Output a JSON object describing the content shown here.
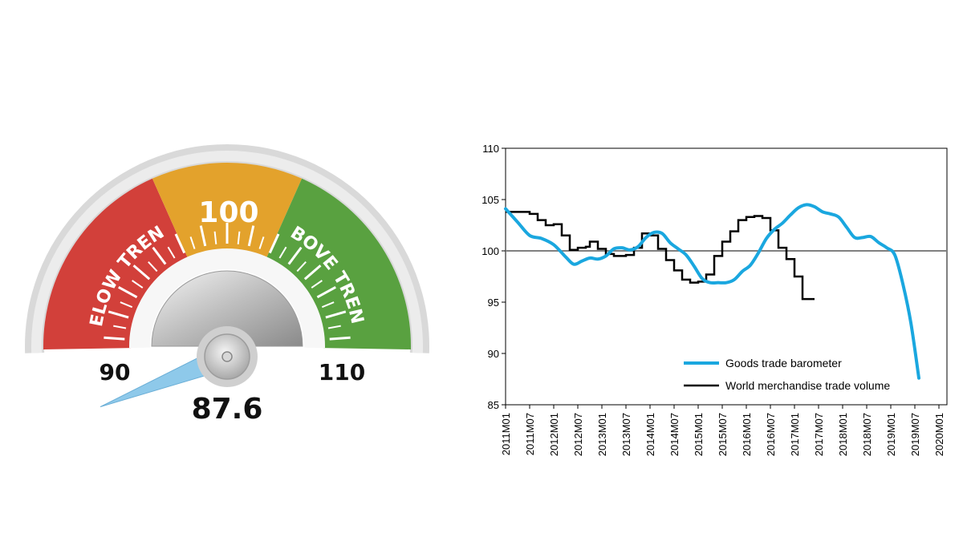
{
  "gauge": {
    "value": 87.6,
    "value_label": "87.6",
    "min": 90,
    "max": 110,
    "min_label": "90",
    "max_label": "110",
    "center_label": "100",
    "below_label": "BELOW TREND",
    "above_label": "ABOVE TREND",
    "colors": {
      "below": "#d2403a",
      "center": "#e3a22c",
      "above": "#59a140",
      "needle": "#8ec9ea"
    }
  },
  "chart_data": {
    "type": "line",
    "ylim": [
      85,
      110
    ],
    "yticks": [
      "85",
      "90",
      "95",
      "100",
      "105",
      "110"
    ],
    "ytick_values": [
      85,
      90,
      95,
      100,
      105,
      110
    ],
    "reference_line": 100,
    "xlabels": [
      "2011M01",
      "2011M07",
      "2012M01",
      "2012M07",
      "2013M01",
      "2013M07",
      "2014M01",
      "2014M07",
      "2015M01",
      "2015M07",
      "2016M01",
      "2016M07",
      "2017M01",
      "2017M07",
      "2018M01",
      "2018M07",
      "2019M01",
      "2019M07",
      "2020M01"
    ],
    "x_periods": 111,
    "series": [
      {
        "name": "Goods trade barometer",
        "color": "#1aa7df",
        "points": [
          [
            0,
            104.1
          ],
          [
            3,
            102.8
          ],
          [
            6,
            101.5
          ],
          [
            9,
            101.2
          ],
          [
            12,
            100.6
          ],
          [
            15,
            99.4
          ],
          [
            17,
            98.7
          ],
          [
            19,
            99.0
          ],
          [
            21,
            99.3
          ],
          [
            23,
            99.2
          ],
          [
            25,
            99.5
          ],
          [
            27,
            100.2
          ],
          [
            29,
            100.3
          ],
          [
            31,
            100.1
          ],
          [
            33,
            100.4
          ],
          [
            35,
            101.3
          ],
          [
            37,
            101.8
          ],
          [
            39,
            101.7
          ],
          [
            41,
            100.8
          ],
          [
            43,
            100.2
          ],
          [
            45,
            99.6
          ],
          [
            47,
            98.5
          ],
          [
            49,
            97.3
          ],
          [
            51,
            96.9
          ],
          [
            53,
            96.9
          ],
          [
            55,
            96.9
          ],
          [
            57,
            97.2
          ],
          [
            59,
            98.0
          ],
          [
            61,
            98.6
          ],
          [
            63,
            99.8
          ],
          [
            65,
            101.2
          ],
          [
            67,
            102.1
          ],
          [
            69,
            102.7
          ],
          [
            71,
            103.5
          ],
          [
            73,
            104.2
          ],
          [
            75,
            104.5
          ],
          [
            77,
            104.3
          ],
          [
            79,
            103.8
          ],
          [
            81,
            103.6
          ],
          [
            83,
            103.3
          ],
          [
            85,
            102.3
          ],
          [
            87,
            101.3
          ],
          [
            89,
            101.3
          ],
          [
            91,
            101.4
          ],
          [
            93,
            100.8
          ],
          [
            95,
            100.3
          ],
          [
            97,
            99.6
          ],
          [
            99,
            96.8
          ],
          [
            101,
            93.0
          ],
          [
            103,
            87.6
          ]
        ]
      },
      {
        "name": "World merchandise trade volume",
        "color": "#000000",
        "steps": [
          [
            0,
            103.8
          ],
          [
            6,
            103.6
          ],
          [
            8,
            103.0
          ],
          [
            10,
            102.5
          ],
          [
            12,
            102.6
          ],
          [
            14,
            101.5
          ],
          [
            16,
            100.1
          ],
          [
            18,
            100.3
          ],
          [
            20,
            100.4
          ],
          [
            21,
            100.9
          ],
          [
            23,
            100.2
          ],
          [
            25,
            99.7
          ],
          [
            27,
            99.5
          ],
          [
            30,
            99.6
          ],
          [
            32,
            100.3
          ],
          [
            34,
            101.7
          ],
          [
            36,
            101.5
          ],
          [
            38,
            100.2
          ],
          [
            40,
            99.1
          ],
          [
            42,
            98.1
          ],
          [
            44,
            97.2
          ],
          [
            46,
            96.9
          ],
          [
            48,
            97.0
          ],
          [
            50,
            97.7
          ],
          [
            52,
            99.5
          ],
          [
            54,
            100.9
          ],
          [
            56,
            101.9
          ],
          [
            58,
            103.0
          ],
          [
            60,
            103.3
          ],
          [
            62,
            103.4
          ],
          [
            64,
            103.2
          ],
          [
            66,
            102.0
          ],
          [
            68,
            100.3
          ],
          [
            70,
            99.2
          ],
          [
            72,
            97.5
          ],
          [
            74,
            95.3
          ],
          [
            76,
            95.3
          ]
        ],
        "steps_end": 77
      }
    ]
  }
}
